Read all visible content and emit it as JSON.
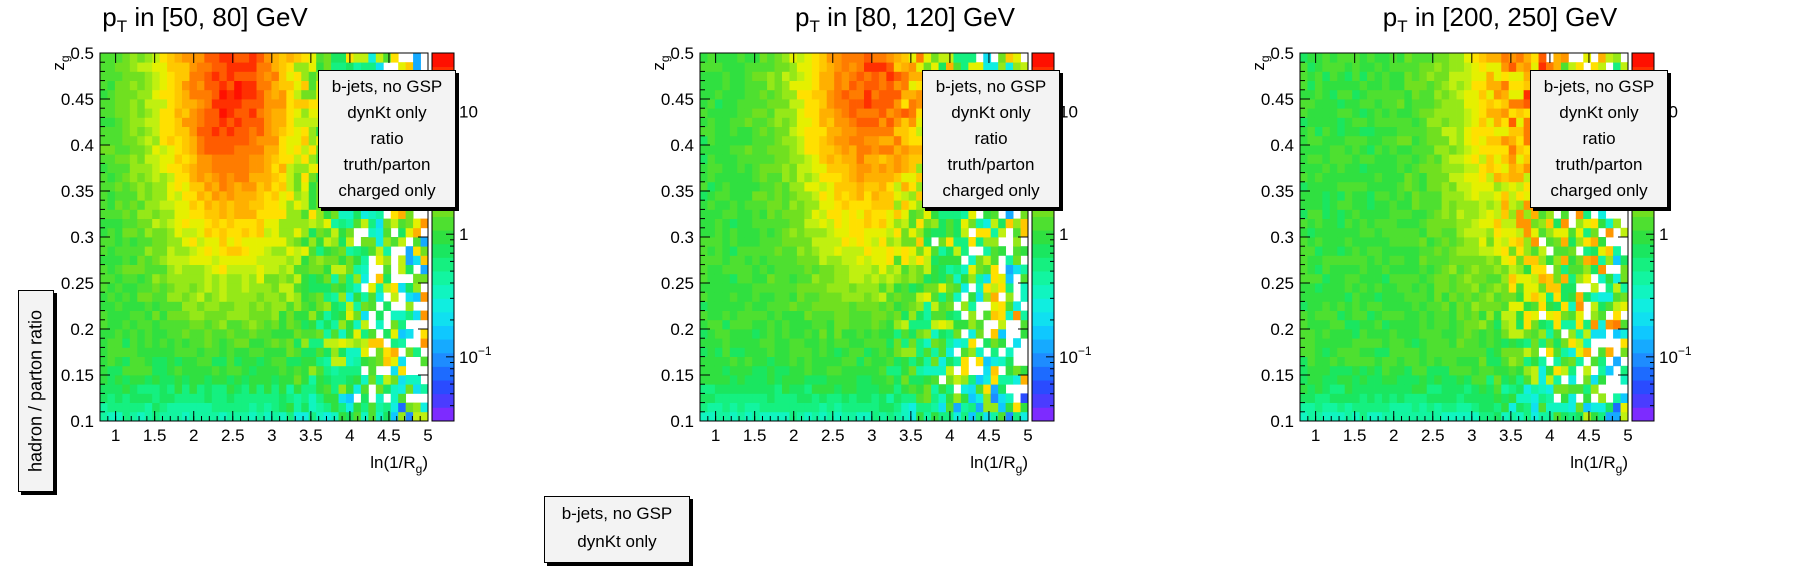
{
  "panels": [
    {
      "title_main": "p",
      "title_sub": "T",
      "title_rest": " in [50, 80] GeV"
    },
    {
      "title_main": "p",
      "title_sub": "T",
      "title_rest": " in [80, 120] GeV"
    },
    {
      "title_main": "p",
      "title_sub": "T",
      "title_rest": " in [200, 250] GeV"
    }
  ],
  "legend_lines": [
    "b-jets, no GSP",
    "dynKt only",
    "ratio truth/parton",
    "charged only"
  ],
  "ylabel": "hadron / parton ratio",
  "bottom_box": [
    "b-jets, no GSP",
    "dynKt only"
  ],
  "chart_data": [
    {
      "type": "heatmap",
      "title": "pT in [50, 80] GeV",
      "xlabel": "ln(1/Rg)",
      "ylabel": "zg",
      "xlim": [
        0.8,
        5.0
      ],
      "ylim": [
        0.1,
        0.5
      ],
      "x_ticks": [
        "1",
        "1.5",
        "2",
        "2.5",
        "3",
        "3.5",
        "4",
        "4.5",
        "5"
      ],
      "y_ticks": [
        "0.1",
        "0.15",
        "0.2",
        "0.25",
        "0.3",
        "0.35",
        "0.4",
        "0.45",
        "0.5"
      ],
      "colorscale": "log",
      "z_range": [
        0.03,
        30
      ],
      "z_ticks": [
        "10^-1",
        "1",
        "10"
      ],
      "peak_region": {
        "x": [
          1.8,
          3.2
        ],
        "y": [
          0.32,
          0.5
        ],
        "value": 20
      },
      "bins_x": 44,
      "bins_y": 40
    },
    {
      "type": "heatmap",
      "title": "pT in [80, 120] GeV",
      "xlabel": "ln(1/Rg)",
      "ylabel": "zg",
      "xlim": [
        0.8,
        5.0
      ],
      "ylim": [
        0.1,
        0.5
      ],
      "x_ticks": [
        "1",
        "1.5",
        "2",
        "2.5",
        "3",
        "3.5",
        "4",
        "4.5",
        "5"
      ],
      "y_ticks": [
        "0.1",
        "0.15",
        "0.2",
        "0.25",
        "0.3",
        "0.35",
        "0.4",
        "0.45",
        "0.5"
      ],
      "colorscale": "log",
      "z_range": [
        0.03,
        30
      ],
      "z_ticks": [
        "10^-1",
        "1",
        "10"
      ],
      "peak_region": {
        "x": [
          2.3,
          3.6
        ],
        "y": [
          0.33,
          0.5
        ],
        "value": 15
      },
      "bins_x": 44,
      "bins_y": 40
    },
    {
      "type": "heatmap",
      "title": "pT in [200, 250] GeV",
      "xlabel": "ln(1/Rg)",
      "ylabel": "zg",
      "xlim": [
        0.8,
        5.0
      ],
      "ylim": [
        0.1,
        0.5
      ],
      "x_ticks": [
        "1",
        "1.5",
        "2",
        "2.5",
        "3",
        "3.5",
        "4",
        "4.5",
        "5"
      ],
      "y_ticks": [
        "0.1",
        "0.15",
        "0.2",
        "0.25",
        "0.3",
        "0.35",
        "0.4",
        "0.45",
        "0.5"
      ],
      "colorscale": "log",
      "z_range": [
        0.03,
        30
      ],
      "z_ticks": [
        "10^-1",
        "1",
        "10"
      ],
      "peak_region": {
        "x": [
          3.0,
          4.5
        ],
        "y": [
          0.3,
          0.5
        ],
        "value": 8
      },
      "bins_x": 44,
      "bins_y": 40
    }
  ],
  "palette": [
    "#7d2bff",
    "#4a3cff",
    "#2a4bff",
    "#1d6bff",
    "#1e8cff",
    "#16aaff",
    "#0fc8ff",
    "#10e0f0",
    "#10eee0",
    "#10f5c0",
    "#12f5a0",
    "#15f080",
    "#1ae660",
    "#30e040",
    "#4ee030",
    "#70e020",
    "#95e818",
    "#c0f010",
    "#e5f000",
    "#ffe000",
    "#ffc800",
    "#ffb000",
    "#ff9600",
    "#ff7c00",
    "#ff5c00",
    "#ff3000",
    "#ff1000"
  ]
}
